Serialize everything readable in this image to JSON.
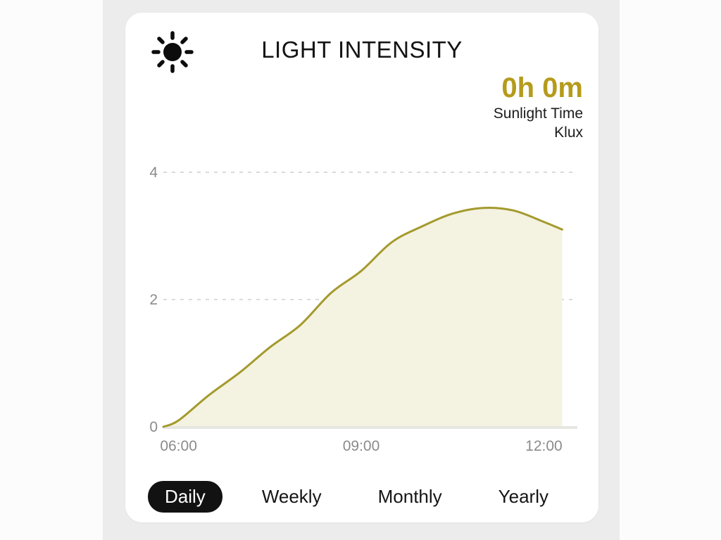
{
  "page": {
    "outer_background": "#fcfcfc",
    "app_background": "#ececec"
  },
  "card": {
    "title": "LIGHT INTENSITY",
    "icon": "sun-icon",
    "stat": {
      "value": "0h 0m",
      "value_color": "#b59b1c",
      "label_line1": "Sunlight Time",
      "label_line2": "Klux"
    },
    "tabs": [
      {
        "id": "daily",
        "label": "Daily",
        "selected": true
      },
      {
        "id": "weekly",
        "label": "Weekly",
        "selected": false
      },
      {
        "id": "monthly",
        "label": "Monthly",
        "selected": false
      },
      {
        "id": "yearly",
        "label": "Yearly",
        "selected": false
      }
    ]
  },
  "chart_data": {
    "type": "area",
    "title": "Light intensity (Klux) over the day",
    "ylabel": "Klux",
    "x_unit": "hour_of_day",
    "x": [
      5.75,
      6.0,
      6.5,
      7.0,
      7.5,
      8.0,
      8.5,
      9.0,
      9.5,
      10.0,
      10.5,
      11.0,
      11.5,
      12.0,
      12.3
    ],
    "values": [
      0,
      0.1,
      0.5,
      0.85,
      1.25,
      1.6,
      2.1,
      2.45,
      2.9,
      3.15,
      3.35,
      3.44,
      3.4,
      3.22,
      3.1
    ],
    "xlim": [
      5.75,
      12.55
    ],
    "ylim": [
      0,
      4
    ],
    "x_ticks": [
      {
        "t": 6,
        "label": "06:00"
      },
      {
        "t": 9,
        "label": "09:00"
      },
      {
        "t": 12,
        "label": "12:00"
      }
    ],
    "y_ticks": [
      {
        "v": 0,
        "label": "0"
      },
      {
        "v": 2,
        "label": "2"
      },
      {
        "v": 4,
        "label": "4"
      }
    ],
    "grid": "horizontal-dashed",
    "legend": "none",
    "line_color": "#a49a2d",
    "fill_color": "#f4f2e1",
    "grid_color": "#dbdbdb",
    "baseline_color": "#e7e7e2",
    "tick_color": "#8b8b8b"
  }
}
